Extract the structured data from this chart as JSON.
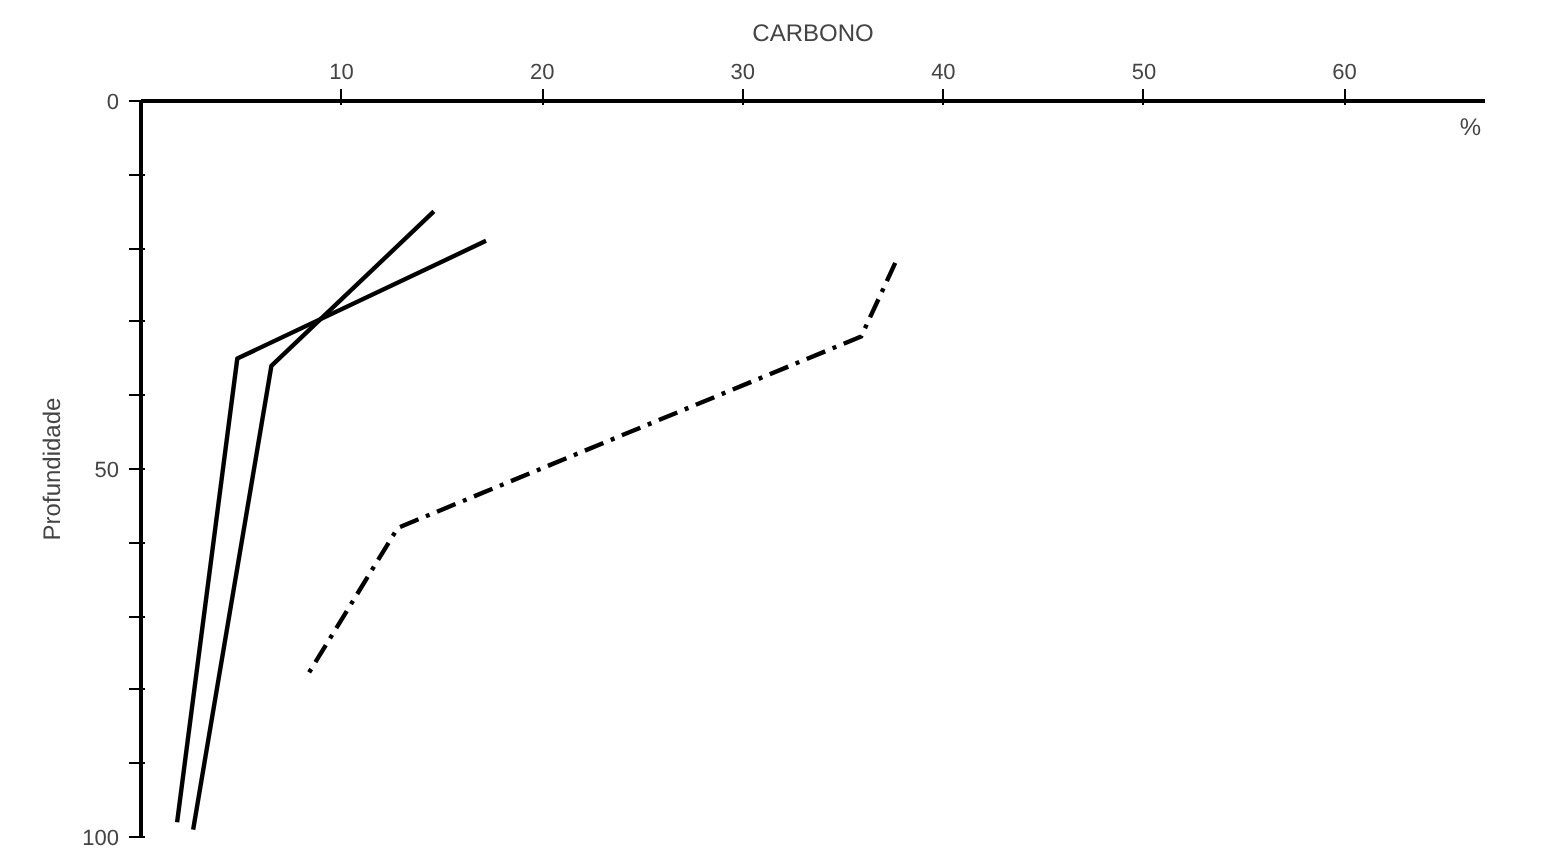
{
  "chart_data": {
    "type": "line",
    "xlabel": "CARBONO",
    "ylabel": "Profundidade",
    "annotations": [
      "%"
    ],
    "xlim": [
      0,
      67
    ],
    "ylim": [
      100,
      0
    ],
    "xticks": [
      10,
      20,
      30,
      40,
      50,
      60
    ],
    "yticks": [
      0,
      {
        "value": 10,
        "label": null
      },
      {
        "value": 20,
        "label": null
      },
      {
        "value": 30,
        "label": null
      },
      {
        "value": 40,
        "label": null
      },
      50,
      {
        "value": 60,
        "label": null
      },
      {
        "value": 70,
        "label": null
      },
      {
        "value": 80,
        "label": null
      },
      {
        "value": 90,
        "label": null
      },
      100
    ],
    "grid": false,
    "marker": "none",
    "series": [
      {
        "color": "#000000",
        "line_style": "solid",
        "x": [
          14.6,
          6.5,
          2.6
        ],
        "values": [
          15,
          36,
          99
        ]
      },
      {
        "color": "#000000",
        "line_style": "solid",
        "x": [
          17.2,
          4.8,
          1.8
        ],
        "values": [
          19,
          35,
          98
        ]
      },
      {
        "color": "#000000",
        "line_style": "dashdot",
        "x": [
          37.6,
          35.9,
          12.8,
          8.3
        ],
        "values": [
          22,
          32,
          58,
          78
        ]
      }
    ]
  }
}
